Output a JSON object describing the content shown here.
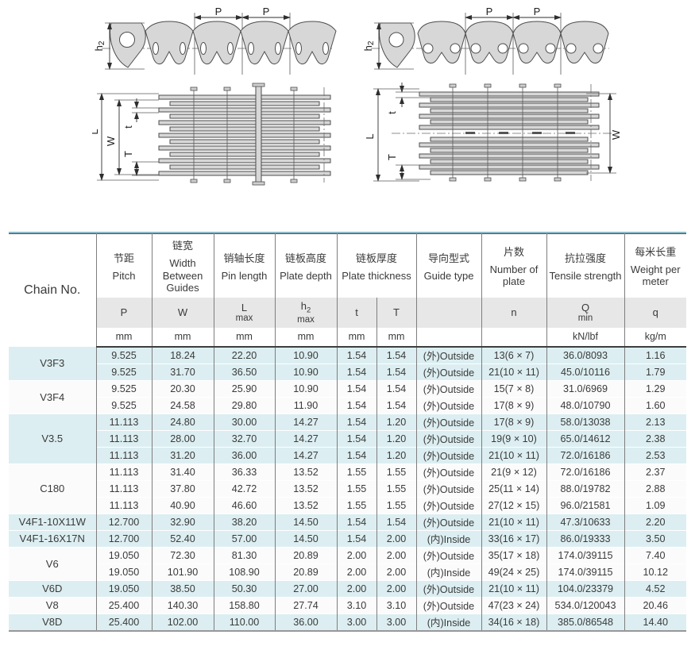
{
  "colors": {
    "band_blue": "#dceef1",
    "band_white": "#fbfbfb",
    "header_band": "#e7e7e7",
    "rule_teal": "#8ab9c6",
    "rule_dark": "#4f4f4f",
    "grid_line": "#7e7e7e",
    "plate_fill": "#d7d7d7",
    "text": "#3a3a3a"
  },
  "diagrams": {
    "side_view_left": {
      "p1": "P",
      "p2": "P",
      "h2_base": "h",
      "h2_sub": "2"
    },
    "side_view_right": {
      "p1": "P",
      "p2": "P",
      "h2_base": "h",
      "h2_sub": "2"
    },
    "plan_view_left": {
      "L": "L",
      "W": "W",
      "t": "t",
      "T": "T"
    },
    "plan_view_right": {
      "L": "L",
      "W": "W",
      "t": "t",
      "T": "T"
    }
  },
  "table": {
    "header": {
      "chain_no": "Chain No.",
      "pitch": {
        "cn": "节距",
        "en": "Pitch",
        "sym": "P",
        "unit": "mm"
      },
      "width": {
        "cn": "链宽",
        "en": "Width Between Guides",
        "sym": "W",
        "unit": "mm"
      },
      "pin_length": {
        "cn": "销轴长度",
        "en": "Pin length",
        "sym": "L",
        "sub": "max",
        "unit": "mm"
      },
      "plate_depth": {
        "cn": "链板高度",
        "en": "Plate depth",
        "sym_base": "h",
        "sym_sub": "2",
        "sub": "max",
        "unit": "mm"
      },
      "plate_thickness": {
        "cn": "链板厚度",
        "en": "Plate thickness",
        "sym_t": "t",
        "sym_T": "T",
        "unit_t": "mm",
        "unit_T": "mm"
      },
      "guide_type": {
        "cn": "导向型式",
        "en": "Guide type"
      },
      "num_plate": {
        "cn": "片数",
        "en": "Number of plate",
        "sym": "n"
      },
      "tensile": {
        "cn": "抗拉强度",
        "en": "Tensile strength",
        "sym": "Q",
        "sub": "min",
        "unit": "kN/lbf"
      },
      "weight": {
        "cn": "每米长重",
        "en": "Weight per meter",
        "sym": "q",
        "unit": "kg/m"
      }
    },
    "groups": [
      {
        "chain_no": "V3F3",
        "band": "blue",
        "rows": [
          [
            "9.525",
            "18.24",
            "22.20",
            "10.90",
            "1.54",
            "1.54",
            "(外)Outside",
            "13(6 × 7)",
            "36.0/8093",
            "1.16"
          ],
          [
            "9.525",
            "31.70",
            "36.50",
            "10.90",
            "1.54",
            "1.54",
            "(外)Outside",
            "21(10 × 11)",
            "45.0/10116",
            "1.79"
          ]
        ]
      },
      {
        "chain_no": "V3F4",
        "band": "white",
        "rows": [
          [
            "9.525",
            "20.30",
            "25.90",
            "10.90",
            "1.54",
            "1.54",
            "(外)Outside",
            "15(7 × 8)",
            "31.0/6969",
            "1.29"
          ],
          [
            "9.525",
            "24.58",
            "29.80",
            "11.90",
            "1.54",
            "1.54",
            "(外)Outside",
            "17(8 × 9)",
            "48.0/10790",
            "1.60"
          ]
        ]
      },
      {
        "chain_no": "V3.5",
        "band": "blue",
        "rows": [
          [
            "11.113",
            "24.80",
            "30.00",
            "14.27",
            "1.54",
            "1.20",
            "(外)Outside",
            "17(8 × 9)",
            "58.0/13038",
            "2.13"
          ],
          [
            "11.113",
            "28.00",
            "32.70",
            "14.27",
            "1.54",
            "1.20",
            "(外)Outside",
            "19(9 × 10)",
            "65.0/14612",
            "2.38"
          ],
          [
            "11.113",
            "31.20",
            "36.00",
            "14.27",
            "1.54",
            "1.20",
            "(外)Outside",
            "21(10 × 11)",
            "72.0/16186",
            "2.53"
          ]
        ]
      },
      {
        "chain_no": "C180",
        "band": "white",
        "rows": [
          [
            "11.113",
            "31.40",
            "36.33",
            "13.52",
            "1.55",
            "1.55",
            "(外)Outside",
            "21(9 × 12)",
            "72.0/16186",
            "2.37"
          ],
          [
            "11.113",
            "37.80",
            "42.72",
            "13.52",
            "1.55",
            "1.55",
            "(外)Outside",
            "25(11 × 14)",
            "88.0/19782",
            "2.88"
          ],
          [
            "11.113",
            "40.90",
            "46.60",
            "13.52",
            "1.55",
            "1.55",
            "(外)Outside",
            "27(12 × 15)",
            "96.0/21581",
            "1.09"
          ]
        ]
      },
      {
        "chain_no": "V4F1-10X11W",
        "band": "blue",
        "rows": [
          [
            "12.700",
            "32.90",
            "38.20",
            "14.50",
            "1.54",
            "1.54",
            "(外)Outside",
            "21(10 × 11)",
            "47.3/10633",
            "2.20"
          ]
        ]
      },
      {
        "chain_no": "V4F1-16X17N",
        "band": "blue",
        "rows": [
          [
            "12.700",
            "52.40",
            "57.00",
            "14.50",
            "1.54",
            "2.00",
            "(内)Inside",
            "33(16 × 17)",
            "86.0/19333",
            "3.50"
          ]
        ]
      },
      {
        "chain_no": "V6",
        "band": "white",
        "rows": [
          [
            "19.050",
            "72.30",
            "81.30",
            "20.89",
            "2.00",
            "2.00",
            "(外)Outside",
            "35(17 × 18)",
            "174.0/39115",
            "7.40"
          ],
          [
            "19.050",
            "101.90",
            "108.90",
            "20.89",
            "2.00",
            "2.00",
            "(内)Inside",
            "49(24 × 25)",
            "174.0/39115",
            "10.12"
          ]
        ]
      },
      {
        "chain_no": "V6D",
        "band": "blue",
        "rows": [
          [
            "19.050",
            "38.50",
            "50.30",
            "27.00",
            "2.00",
            "2.00",
            "(外)Outside",
            "21(10 × 11)",
            "104.0/23379",
            "4.52"
          ]
        ]
      },
      {
        "chain_no": "V8",
        "band": "white",
        "rows": [
          [
            "25.400",
            "140.30",
            "158.80",
            "27.74",
            "3.10",
            "3.10",
            "(外)Outside",
            "47(23 × 24)",
            "534.0/120043",
            "20.46"
          ]
        ]
      },
      {
        "chain_no": "V8D",
        "band": "blue",
        "rows": [
          [
            "25.400",
            "102.00",
            "110.00",
            "36.00",
            "3.00",
            "3.00",
            "(内)Inside",
            "34(16 × 18)",
            "385.0/86548",
            "14.40"
          ]
        ]
      }
    ]
  }
}
